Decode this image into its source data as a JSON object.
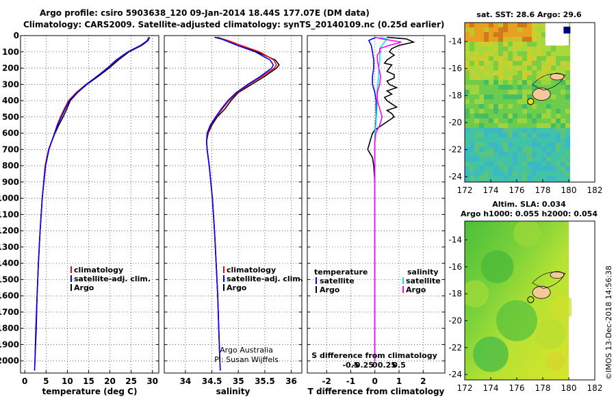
{
  "header": {
    "title_line1": "Argo profile: csiro 5903638_120 09-Jan-2014 18.44S 177.07E (DM data)",
    "title_line2": "Climatology: CARS2009. Satellite-adjusted climatology: synTS_20140109.nc (0.25d earlier)"
  },
  "credits": {
    "line1": "Argo Australia",
    "line2": "PI: Susan Wijffels"
  },
  "timestamp": "©IMOS 13-Dec-2018 14:56:38",
  "colors": {
    "climatology": "#ff0000",
    "satellite": "#0000ff",
    "argo": "#000000",
    "cyan": "#00e5e5",
    "magenta": "#ff00ff"
  },
  "chart_data": [
    {
      "id": "temperature-profile",
      "type": "line",
      "xlabel": "temperature (deg C)",
      "ylabel": "",
      "xlim": [
        -1,
        31.5
      ],
      "ylim": [
        2075,
        0
      ],
      "xticks": [
        0,
        5,
        10,
        15,
        20,
        25,
        30
      ],
      "yticks": [
        0,
        100,
        200,
        300,
        400,
        500,
        600,
        700,
        800,
        900,
        1000,
        1100,
        1200,
        1300,
        1400,
        1500,
        1600,
        1700,
        1800,
        1900,
        2000
      ],
      "grid": true,
      "legend": [
        "climatology",
        "satellite-adj. clim.",
        "Argo"
      ],
      "series": [
        {
          "name": "Argo",
          "depth": [
            10,
            30,
            60,
            100,
            150,
            200,
            250,
            300,
            350,
            400,
            450,
            500,
            550,
            600,
            700,
            800,
            1000,
            1200,
            1400,
            1600,
            1800,
            2000
          ],
          "values": [
            29.3,
            29.0,
            27.5,
            24.5,
            22.0,
            19.8,
            17.3,
            14.6,
            12.4,
            10.7,
            9.9,
            9.0,
            8.0,
            7.1,
            5.6,
            4.8,
            4.1,
            3.6,
            3.2,
            2.9,
            2.7,
            2.4
          ]
        },
        {
          "name": "climatology",
          "depth": [
            10,
            30,
            60,
            100,
            150,
            200,
            250,
            300,
            350,
            400,
            450,
            500,
            550,
            600,
            700,
            800,
            1000,
            1200,
            1400,
            1600,
            1800,
            2000,
            2060
          ],
          "values": [
            29.1,
            28.8,
            27.3,
            24.3,
            21.6,
            19.5,
            17.0,
            14.4,
            12.1,
            10.3,
            9.3,
            8.4,
            7.6,
            7.0,
            5.6,
            4.8,
            4.1,
            3.6,
            3.2,
            2.9,
            2.6,
            2.4,
            2.3
          ]
        },
        {
          "name": "satellite-adj. clim.",
          "depth": [
            10,
            30,
            60,
            100,
            150,
            200,
            250,
            300,
            350,
            400,
            450,
            500,
            550,
            600,
            700,
            800,
            1000,
            1200,
            1400,
            1600,
            1800,
            2000,
            2060
          ],
          "values": [
            29.4,
            28.9,
            27.2,
            24.2,
            21.5,
            19.4,
            17.0,
            14.5,
            12.3,
            10.5,
            9.5,
            8.6,
            7.7,
            7.0,
            5.7,
            4.9,
            4.1,
            3.6,
            3.2,
            2.9,
            2.6,
            2.4,
            2.3
          ]
        }
      ]
    },
    {
      "id": "salinity-profile",
      "type": "line",
      "xlabel": "salinity",
      "xlim": [
        33.6,
        36.2
      ],
      "ylim": [
        2075,
        0
      ],
      "xticks": [
        34,
        34.5,
        35,
        35.5,
        36
      ],
      "grid": true,
      "legend": [
        "climatology",
        "satellite-adj. clim.",
        "Argo"
      ],
      "series": [
        {
          "name": "Argo",
          "depth": [
            10,
            30,
            60,
            100,
            150,
            180,
            200,
            250,
            300,
            350,
            400,
            450,
            500,
            550,
            600,
            650,
            700,
            800,
            1000,
            1200,
            1400,
            1600,
            1800,
            2000
          ],
          "values": [
            34.55,
            34.78,
            34.98,
            35.35,
            35.7,
            35.77,
            35.72,
            35.5,
            35.25,
            35.0,
            34.86,
            34.75,
            34.6,
            34.5,
            34.43,
            34.4,
            34.41,
            34.45,
            34.51,
            34.55,
            34.58,
            34.61,
            34.63,
            34.65
          ]
        },
        {
          "name": "climatology",
          "depth": [
            10,
            30,
            60,
            100,
            150,
            180,
            200,
            250,
            300,
            350,
            400,
            450,
            500,
            550,
            600,
            650,
            700,
            800,
            1000,
            1200,
            1400,
            1600,
            1800,
            2000,
            2060
          ],
          "values": [
            34.6,
            34.8,
            35.05,
            35.4,
            35.67,
            35.72,
            35.68,
            35.45,
            35.2,
            34.98,
            34.82,
            34.7,
            34.58,
            34.48,
            34.42,
            34.4,
            34.41,
            34.45,
            34.51,
            34.55,
            34.58,
            34.61,
            34.63,
            34.65,
            34.66
          ]
        },
        {
          "name": "satellite-adj. clim.",
          "depth": [
            10,
            30,
            60,
            100,
            150,
            180,
            200,
            250,
            300,
            350,
            400,
            450,
            500,
            550,
            600,
            650,
            700,
            800,
            1000,
            1200,
            1400,
            1600,
            1800,
            2000,
            2060
          ],
          "values": [
            34.6,
            34.75,
            34.98,
            35.32,
            35.6,
            35.66,
            35.63,
            35.42,
            35.18,
            34.96,
            34.8,
            34.68,
            34.57,
            34.47,
            34.41,
            34.4,
            34.41,
            34.45,
            34.51,
            34.55,
            34.58,
            34.61,
            34.63,
            34.65,
            34.66
          ]
        }
      ]
    },
    {
      "id": "difference-profile",
      "type": "line",
      "xlabel": "T difference from climatology",
      "xlabel_top": "S difference from climatology",
      "xlim": [
        -2.8,
        2.9
      ],
      "ylim": [
        2075,
        0
      ],
      "xticks": [
        -2,
        -1,
        0,
        1,
        2
      ],
      "xtick_labels": [
        "-2",
        "-1",
        "0",
        "1",
        "2"
      ],
      "s_xticks": [
        -0.5,
        -0.25,
        0,
        0.25,
        0.5
      ],
      "s_xtick_labels": [
        "-0.5",
        "-0.25",
        "0",
        "0.25",
        "0.5"
      ],
      "grid": true,
      "legend_left_title": "temperature",
      "legend_right_title": "salinity",
      "legend_left": [
        "satellite",
        "Argo"
      ],
      "legend_right": [
        "satellite",
        "Argo"
      ],
      "series": [
        {
          "name": "T Argo",
          "depth": [
            10,
            20,
            40,
            60,
            80,
            100,
            120,
            150,
            170,
            180,
            200,
            220,
            240,
            260,
            280,
            300,
            320,
            340,
            360,
            380,
            400,
            420,
            440,
            460,
            480,
            500,
            520,
            540,
            560,
            580,
            600,
            650,
            700,
            750,
            800,
            900,
            1000,
            1200,
            1400,
            1500,
            1600,
            1800,
            2000
          ],
          "values": [
            0.5,
            1.3,
            1.6,
            1.0,
            0.7,
            0.6,
            0.8,
            0.5,
            0.4,
            0.7,
            0.6,
            0.5,
            0.8,
            0.8,
            0.5,
            0.6,
            0.9,
            0.5,
            0.7,
            0.4,
            0.5,
            0.7,
            0.9,
            0.5,
            0.7,
            0.8,
            0.6,
            0.4,
            0.2,
            0.0,
            -0.1,
            -0.2,
            -0.3,
            -0.1,
            -0.05,
            0.0,
            0.0,
            0.0,
            0.0,
            0.0,
            0.0,
            0.0,
            0.0
          ]
        },
        {
          "name": "T satellite",
          "depth": [
            10,
            30,
            60,
            100,
            150,
            200,
            250,
            300,
            350,
            400,
            450,
            500,
            600,
            700,
            800,
            1000,
            1200,
            1400,
            1600,
            1800,
            2000
          ],
          "values": [
            0.05,
            -0.25,
            -0.15,
            -0.1,
            -0.05,
            -0.05,
            -0.1,
            -0.1,
            0.0,
            0.05,
            0.05,
            0.05,
            0.0,
            0.0,
            0.0,
            0.0,
            0.0,
            0.0,
            0.0,
            0.0,
            0.0
          ]
        },
        {
          "name": "S satellite",
          "depth": [
            10,
            20,
            40,
            60,
            80,
            100,
            120,
            150,
            200,
            250,
            300,
            350,
            400,
            450,
            500,
            550,
            600,
            700,
            800,
            1000,
            1200,
            1400,
            1600,
            1800,
            2000
          ],
          "values": [
            0.1,
            0.25,
            0.2,
            0.15,
            0.1,
            0.12,
            0.1,
            0.1,
            0.08,
            0.08,
            0.06,
            0.04,
            0.05,
            0.04,
            0.03,
            0.02,
            0.0,
            0.0,
            0.0,
            0.0,
            0.0,
            0.0,
            0.0,
            0.0,
            0.0
          ]
        },
        {
          "name": "S Argo",
          "depth": [
            10,
            20,
            40,
            60,
            80,
            100,
            120,
            150,
            200,
            250,
            300,
            350,
            400,
            450,
            500,
            550,
            600,
            650,
            700,
            800,
            1000,
            1200,
            1400,
            1600,
            1800,
            2000
          ],
          "values": [
            0.0,
            0.15,
            0.55,
            0.3,
            0.1,
            0.1,
            0.05,
            0.05,
            0.08,
            0.12,
            0.1,
            0.05,
            0.05,
            0.1,
            0.15,
            0.1,
            0.02,
            0.0,
            0.0,
            0.0,
            0.0,
            0.0,
            0.0,
            0.0,
            0.0,
            0.0
          ]
        }
      ]
    },
    {
      "id": "sst-map",
      "type": "heatmap",
      "title": "sat. SST: 28.6 Argo: 29.6",
      "xlim": [
        172,
        182
      ],
      "ylim": [
        -24.4,
        -12.6
      ],
      "xticks": [
        172,
        174,
        176,
        178,
        180,
        182
      ],
      "yticks": [
        -14,
        -16,
        -18,
        -20,
        -22,
        -24
      ],
      "data_extent_lon": [
        172,
        180
      ],
      "argo_position": [
        177.07,
        -18.44
      ],
      "islands": [
        [
          177.8,
          -17.8
        ],
        [
          179.0,
          -16.6
        ]
      ]
    },
    {
      "id": "sla-map",
      "type": "heatmap",
      "title": "Altim. SLA: 0.034",
      "subtitle": "Argo h1000: 0.055 h2000: 0.054",
      "xlim": [
        172,
        182
      ],
      "ylim": [
        -24.4,
        -12.6
      ],
      "xticks": [
        172,
        174,
        176,
        178,
        180,
        182
      ],
      "yticks": [
        -14,
        -16,
        -18,
        -20,
        -22,
        -24
      ],
      "data_extent_lon": [
        172,
        180
      ],
      "argo_position": [
        177.07,
        -18.44
      ],
      "islands": [
        [
          177.8,
          -17.8
        ],
        [
          179.0,
          -16.6
        ]
      ]
    }
  ]
}
